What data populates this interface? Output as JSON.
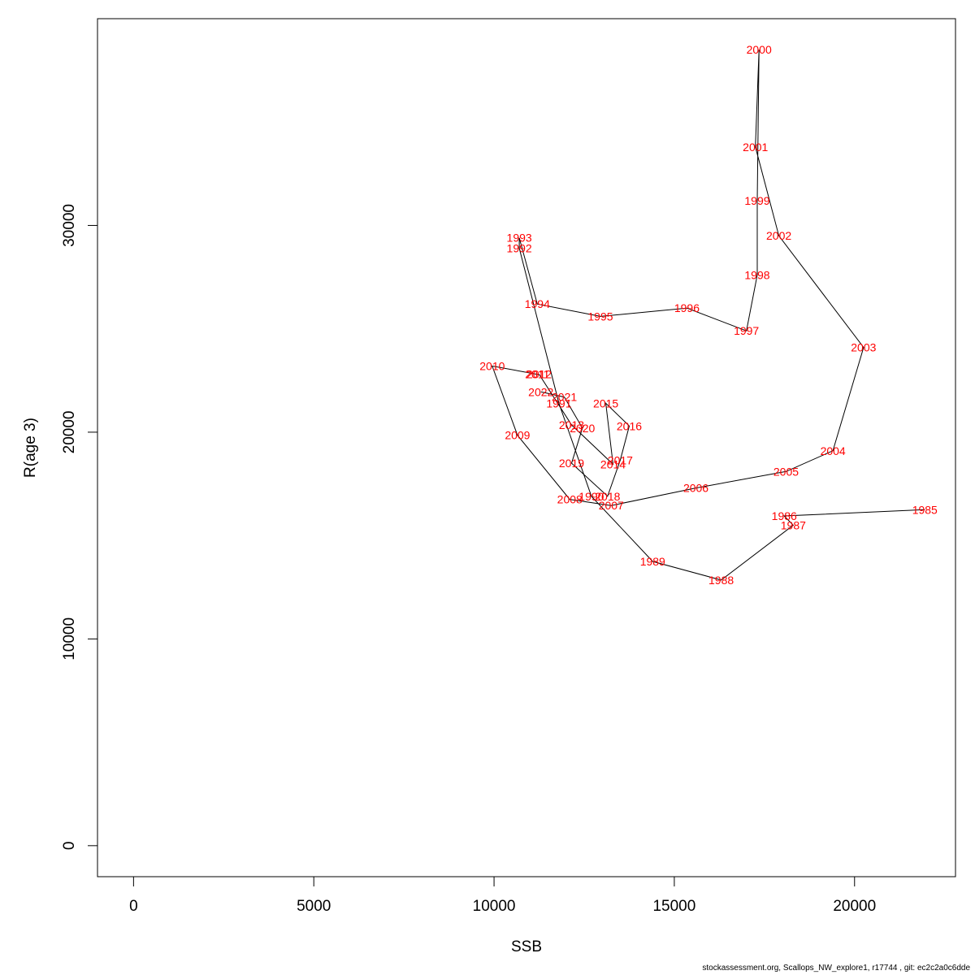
{
  "chart_data": {
    "type": "line",
    "title": "",
    "xlabel": "SSB",
    "ylabel": "R(age 3)",
    "xlim": [
      -1000,
      22800
    ],
    "ylim": [
      -1500,
      40000
    ],
    "xticks": [
      0,
      5000,
      10000,
      15000,
      20000
    ],
    "yticks": [
      0,
      10000,
      20000,
      30000
    ],
    "grid": false,
    "line_color": "#000000",
    "label_color": "#ff0000",
    "points": [
      {
        "label": "1985",
        "x": 21950,
        "y": 16250
      },
      {
        "label": "1986",
        "x": 18050,
        "y": 15950
      },
      {
        "label": "1987",
        "x": 18300,
        "y": 15500
      },
      {
        "label": "1988",
        "x": 16300,
        "y": 12850
      },
      {
        "label": "1989",
        "x": 14400,
        "y": 13750
      },
      {
        "label": "1990",
        "x": 12700,
        "y": 16900
      },
      {
        "label": "1991",
        "x": 11800,
        "y": 21400
      },
      {
        "label": "1992",
        "x": 10700,
        "y": 28900
      },
      {
        "label": "1993",
        "x": 10700,
        "y": 29400
      },
      {
        "label": "1994",
        "x": 11200,
        "y": 26200
      },
      {
        "label": "1995",
        "x": 12950,
        "y": 25600
      },
      {
        "label": "1996",
        "x": 15350,
        "y": 26000
      },
      {
        "label": "1997",
        "x": 17000,
        "y": 24900
      },
      {
        "label": "1998",
        "x": 17300,
        "y": 27600
      },
      {
        "label": "1999",
        "x": 17300,
        "y": 31200
      },
      {
        "label": "2000",
        "x": 17350,
        "y": 38500
      },
      {
        "label": "2001",
        "x": 17250,
        "y": 33800
      },
      {
        "label": "2002",
        "x": 17900,
        "y": 29500
      },
      {
        "label": "2003",
        "x": 20250,
        "y": 24100
      },
      {
        "label": "2004",
        "x": 19400,
        "y": 19100
      },
      {
        "label": "2005",
        "x": 18100,
        "y": 18100
      },
      {
        "label": "2006",
        "x": 15600,
        "y": 17300
      },
      {
        "label": "2007",
        "x": 13250,
        "y": 16450
      },
      {
        "label": "2008",
        "x": 12100,
        "y": 16750
      },
      {
        "label": "2009",
        "x": 10650,
        "y": 19850
      },
      {
        "label": "2010",
        "x": 9950,
        "y": 23200
      },
      {
        "label": "2011",
        "x": 11200,
        "y": 22800
      },
      {
        "label": "2012",
        "x": 11250,
        "y": 22800
      },
      {
        "label": "2013",
        "x": 12150,
        "y": 20350
      },
      {
        "label": "2014",
        "x": 13300,
        "y": 18450
      },
      {
        "label": "2015",
        "x": 13100,
        "y": 21400
      },
      {
        "label": "2016",
        "x": 13750,
        "y": 20300
      },
      {
        "label": "2017",
        "x": 13500,
        "y": 18650
      },
      {
        "label": "2018",
        "x": 13150,
        "y": 16900
      },
      {
        "label": "2019",
        "x": 12150,
        "y": 18500
      },
      {
        "label": "2020",
        "x": 12450,
        "y": 20200
      },
      {
        "label": "2021",
        "x": 11950,
        "y": 21700
      },
      {
        "label": "2022",
        "x": 11300,
        "y": 21950
      }
    ]
  },
  "footer": "stockassessment.org, Scallops_NW_explore1, r17744 , git: ec2c2a0c6dde"
}
